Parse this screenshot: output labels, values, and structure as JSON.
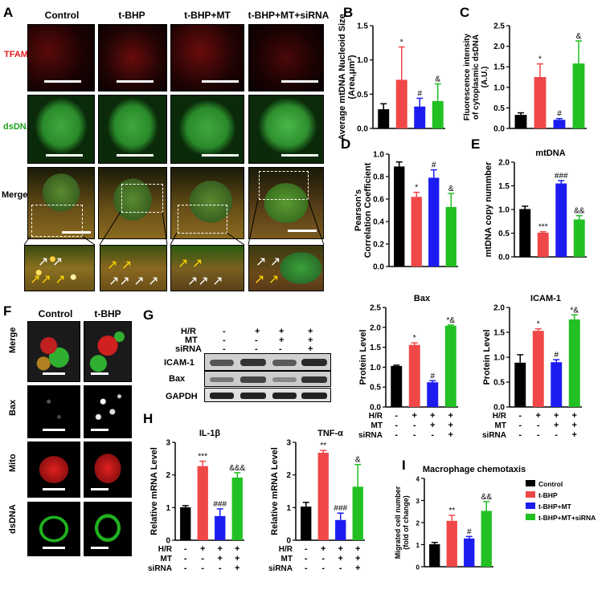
{
  "panelA": {
    "letter": "A",
    "columns": [
      "Control",
      "t-BHP",
      "t-BHP+MT",
      "t-BHP+MT+siRNA"
    ],
    "rows": [
      "TFAM",
      "dsDNA",
      "Merge"
    ],
    "colors": {
      "TFAM": "#e41a1c",
      "dsDNA": "#1ea01e",
      "Merge": "#000000"
    }
  },
  "panelF": {
    "letter": "F",
    "columns": [
      "Control",
      "t-BHP"
    ],
    "rows": [
      "Merge",
      "Bax",
      "Mito",
      "dsDNA"
    ]
  },
  "panelG": {
    "letter": "G",
    "conditions": [
      {
        "label": "H/R",
        "signs": [
          "-",
          "+",
          "+",
          "+"
        ]
      },
      {
        "label": "MT",
        "signs": [
          "-",
          "-",
          "+",
          "+"
        ]
      },
      {
        "label": "siRNA",
        "signs": [
          "-",
          "-",
          "-",
          "+"
        ]
      }
    ],
    "bands": [
      "ICAM-1",
      "Bax",
      "GAPDH"
    ]
  },
  "colors": {
    "control": "#000000",
    "tbhp": "#f04848",
    "mt": "#1c1cf0",
    "sirna": "#22c022"
  },
  "chart_data": [
    {
      "id": "B",
      "letter": "B",
      "type": "bar",
      "title": "",
      "ylabel": "Average mtDNA Nucleoid Size\n(Area,μm²)",
      "ylim": [
        0,
        1.5
      ],
      "yticks": [
        "0.0",
        "0.5",
        "1.0",
        "1.5"
      ],
      "ytick_values": [
        0,
        0.5,
        1.0,
        1.5
      ],
      "values": [
        0.28,
        0.71,
        0.32,
        0.4
      ],
      "errors": [
        0.08,
        0.48,
        0.12,
        0.25
      ],
      "annotations": [
        "",
        "*",
        "#",
        "&"
      ],
      "condition_rows": []
    },
    {
      "id": "C",
      "letter": "C",
      "type": "bar",
      "title": "",
      "ylabel": "Fluorescence intensity\nof cytoplasmic dsDNA\n(A.U.)",
      "ylim": [
        0,
        2.5
      ],
      "yticks": [
        "0.0",
        "0.5",
        "1.0",
        "1.5",
        "2.0",
        "2.5"
      ],
      "ytick_values": [
        0,
        0.5,
        1.0,
        1.5,
        2.0,
        2.5
      ],
      "values": [
        0.33,
        1.25,
        0.21,
        1.58
      ],
      "errors": [
        0.05,
        0.32,
        0.03,
        0.55
      ],
      "annotations": [
        "",
        "*",
        "#",
        "&"
      ],
      "condition_rows": []
    },
    {
      "id": "D",
      "letter": "D",
      "type": "bar",
      "title": "",
      "ylabel": "Pearson's\nCorrelation Coefficient",
      "ylim": [
        0,
        1.0
      ],
      "yticks": [
        "0.0",
        "0.2",
        "0.4",
        "0.6",
        "0.8",
        "1.0"
      ],
      "ytick_values": [
        0,
        0.2,
        0.4,
        0.6,
        0.8,
        1.0
      ],
      "values": [
        0.89,
        0.62,
        0.79,
        0.53
      ],
      "errors": [
        0.04,
        0.04,
        0.07,
        0.12
      ],
      "annotations": [
        "",
        "*",
        "#",
        "&"
      ],
      "condition_rows": []
    },
    {
      "id": "E",
      "letter": "E",
      "type": "bar",
      "title": "mtDNA",
      "ylabel": "mtDNA copy nummber",
      "ylim": [
        0,
        2.0
      ],
      "yticks": [
        "0.0",
        "0.5",
        "1.0",
        "1.5",
        "2.0"
      ],
      "ytick_values": [
        0,
        0.5,
        1.0,
        1.5,
        2.0
      ],
      "values": [
        1.01,
        0.51,
        1.55,
        0.79
      ],
      "errors": [
        0.06,
        0.02,
        0.06,
        0.08
      ],
      "annotations": [
        "",
        "***",
        "###",
        "&&"
      ],
      "condition_rows": []
    },
    {
      "id": "Bax",
      "letter": "",
      "type": "bar",
      "title": "Bax",
      "ylabel": "Protein Level",
      "ylim": [
        0,
        2.5
      ],
      "yticks": [
        "0.0",
        "0.5",
        "1.0",
        "1.5",
        "2.0",
        "2.5"
      ],
      "ytick_values": [
        0,
        0.5,
        1.0,
        1.5,
        2.0,
        2.5
      ],
      "values": [
        1.03,
        1.56,
        0.62,
        2.04
      ],
      "errors": [
        0.02,
        0.05,
        0.04,
        0.02
      ],
      "annotations": [
        "",
        "*",
        "#",
        "*&"
      ],
      "condition_rows": [
        {
          "label": "H/R",
          "signs": [
            "-",
            "+",
            "+",
            "+"
          ]
        },
        {
          "label": "MT",
          "signs": [
            "-",
            "-",
            "+",
            "+"
          ]
        },
        {
          "label": "siRNA",
          "signs": [
            "-",
            "-",
            "-",
            "+"
          ]
        }
      ]
    },
    {
      "id": "ICAM",
      "letter": "",
      "type": "bar",
      "title": "ICAM-1",
      "ylabel": "Protein Level",
      "ylim": [
        0,
        2.0
      ],
      "yticks": [
        "0.0",
        "0.5",
        "1.0",
        "1.5",
        "2.0"
      ],
      "ytick_values": [
        0,
        0.5,
        1.0,
        1.5,
        2.0
      ],
      "values": [
        0.89,
        1.53,
        0.9,
        1.76
      ],
      "errors": [
        0.16,
        0.04,
        0.05,
        0.09
      ],
      "annotations": [
        "",
        "*",
        "#",
        "*&"
      ],
      "condition_rows": [
        {
          "label": "H/R",
          "signs": [
            "-",
            "+",
            "+",
            "+"
          ]
        },
        {
          "label": "MT",
          "signs": [
            "-",
            "-",
            "+",
            "+"
          ]
        },
        {
          "label": "siRNA",
          "signs": [
            "-",
            "-",
            "-",
            "+"
          ]
        }
      ]
    },
    {
      "id": "IL1b",
      "letter": "H",
      "type": "bar",
      "title": "IL-1β",
      "ylabel": "Relative mRNA Level",
      "ylim": [
        0,
        3
      ],
      "yticks": [
        "0",
        "1",
        "2",
        "3"
      ],
      "ytick_values": [
        0,
        1,
        2,
        3
      ],
      "values": [
        1.01,
        2.27,
        0.74,
        1.92
      ],
      "errors": [
        0.05,
        0.15,
        0.22,
        0.15
      ],
      "annotations": [
        "",
        "***",
        "###",
        "&&&"
      ],
      "condition_rows": [
        {
          "label": "H/R",
          "signs": [
            "-",
            "+",
            "+",
            "+"
          ]
        },
        {
          "label": "MT",
          "signs": [
            "-",
            "-",
            "+",
            "+"
          ]
        },
        {
          "label": "siRNA",
          "signs": [
            "-",
            "-",
            "-",
            "+"
          ]
        }
      ]
    },
    {
      "id": "TNFa",
      "letter": "",
      "type": "bar",
      "title": "TNF-α",
      "ylabel": "Relative mRNA Level",
      "ylim": [
        0,
        3
      ],
      "yticks": [
        "0",
        "1",
        "2",
        "3"
      ],
      "ytick_values": [
        0,
        1,
        2,
        3
      ],
      "values": [
        1.03,
        2.68,
        0.62,
        1.64
      ],
      "errors": [
        0.13,
        0.07,
        0.21,
        0.68
      ],
      "annotations": [
        "",
        "**",
        "###",
        "&"
      ],
      "condition_rows": [
        {
          "label": "H/R",
          "signs": [
            "-",
            "+",
            "+",
            "+"
          ]
        },
        {
          "label": "MT",
          "signs": [
            "-",
            "-",
            "+",
            "+"
          ]
        },
        {
          "label": "siRNA",
          "signs": [
            "-",
            "-",
            "-",
            "+"
          ]
        }
      ]
    },
    {
      "id": "I",
      "letter": "I",
      "type": "bar",
      "title": "Macrophage chemotaxis",
      "ylabel": "Migrated cell number\n(fold of change)",
      "ylim": [
        0,
        4
      ],
      "yticks": [
        "0",
        "1",
        "2",
        "3",
        "4"
      ],
      "ytick_values": [
        0,
        1,
        2,
        3,
        4
      ],
      "values": [
        1.02,
        2.08,
        1.28,
        2.53
      ],
      "errors": [
        0.08,
        0.25,
        0.09,
        0.42
      ],
      "annotations": [
        "",
        "**",
        "#",
        "&&"
      ],
      "condition_rows": [],
      "legend": [
        "Control",
        "t-BHP",
        "t-BHP+MT",
        "t-BHP+MT+siRNA"
      ]
    }
  ]
}
